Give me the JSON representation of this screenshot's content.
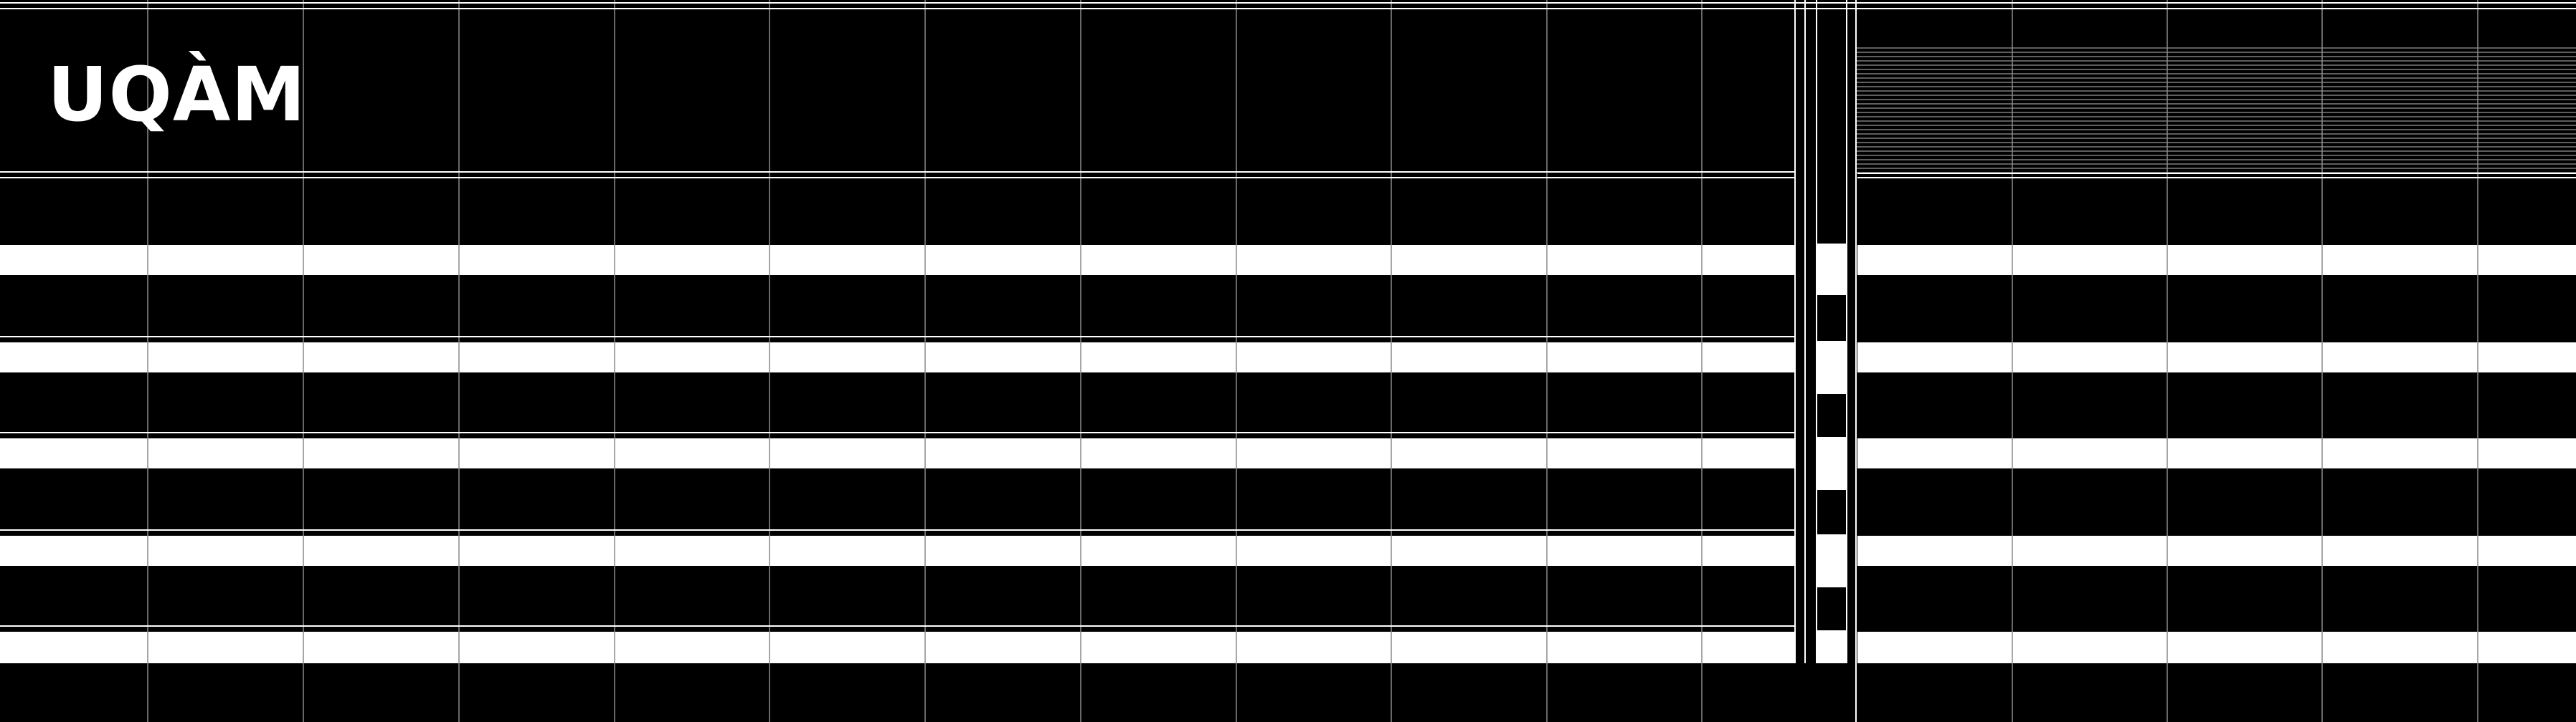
{
  "brand": {
    "logo_text": "UQÀM"
  },
  "colors": {
    "background": "#000000",
    "stripe": "#ffffff",
    "grid_line": "#8a8a8a",
    "frame_line": "#ffffff"
  },
  "icons": {
    "logo": "uqam-wordmark"
  }
}
